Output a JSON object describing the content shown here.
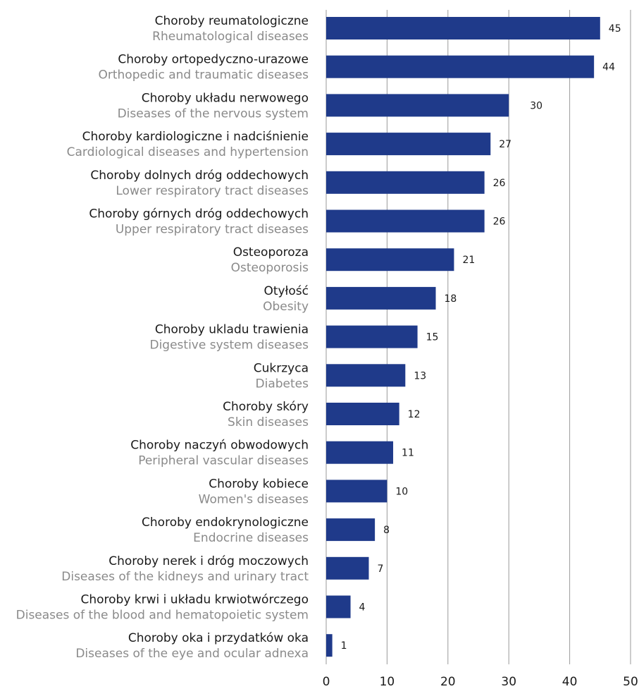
{
  "chart_data": {
    "type": "bar",
    "orientation": "horizontal",
    "categories": [
      {
        "pl": "Choroby reumatologiczne",
        "en": "Rheumatological diseases"
      },
      {
        "pl": "Choroby ortopedyczno-urazowe",
        "en": "Orthopedic and traumatic diseases"
      },
      {
        "pl": "Choroby układu nerwowego",
        "en": "Diseases of the nervous system"
      },
      {
        "pl": "Choroby kardiologiczne i nadciśnienie",
        "en": "Cardiological diseases and hypertension"
      },
      {
        "pl": "Choroby dolnych dróg oddechowych",
        "en": "Lower respiratory tract diseases"
      },
      {
        "pl": "Choroby górnych dróg oddechowych",
        "en": "Upper respiratory tract diseases"
      },
      {
        "pl": "Osteoporoza",
        "en": "Osteoporosis"
      },
      {
        "pl": "Otyłość",
        "en": "Obesity"
      },
      {
        "pl": "Choroby ukladu trawienia",
        "en": "Digestive system diseases"
      },
      {
        "pl": "Cukrzyca",
        "en": "Diabetes"
      },
      {
        "pl": "Choroby skóry",
        "en": "Skin diseases"
      },
      {
        "pl": "Choroby naczyń obwodowych",
        "en": "Peripheral vascular diseases"
      },
      {
        "pl": "Choroby kobiece",
        "en": "Women's diseases"
      },
      {
        "pl": "Choroby endokrynologiczne",
        "en": "Endocrine diseases"
      },
      {
        "pl": "Choroby nerek i dróg moczowych",
        "en": "Diseases of the kidneys and urinary tract"
      },
      {
        "pl": "Choroby krwi i układu krwiotwórczego",
        "en": "Diseases of the blood and hematopoietic system"
      },
      {
        "pl": "Choroby oka i przydatków oka",
        "en": "Diseases of the eye and ocular adnexa"
      }
    ],
    "values": [
      45,
      44,
      30,
      27,
      26,
      26,
      21,
      18,
      15,
      13,
      12,
      11,
      10,
      8,
      7,
      4,
      1
    ],
    "xlim": [
      0,
      50
    ],
    "xticks": [
      "0",
      "10",
      "20",
      "30",
      "40",
      "50"
    ],
    "grid": true,
    "colors": {
      "bar": "#1f3a8a",
      "grid": "#9a9a9a",
      "label_primary": "#1a1a1a",
      "label_secondary": "#8a8a8a"
    }
  }
}
